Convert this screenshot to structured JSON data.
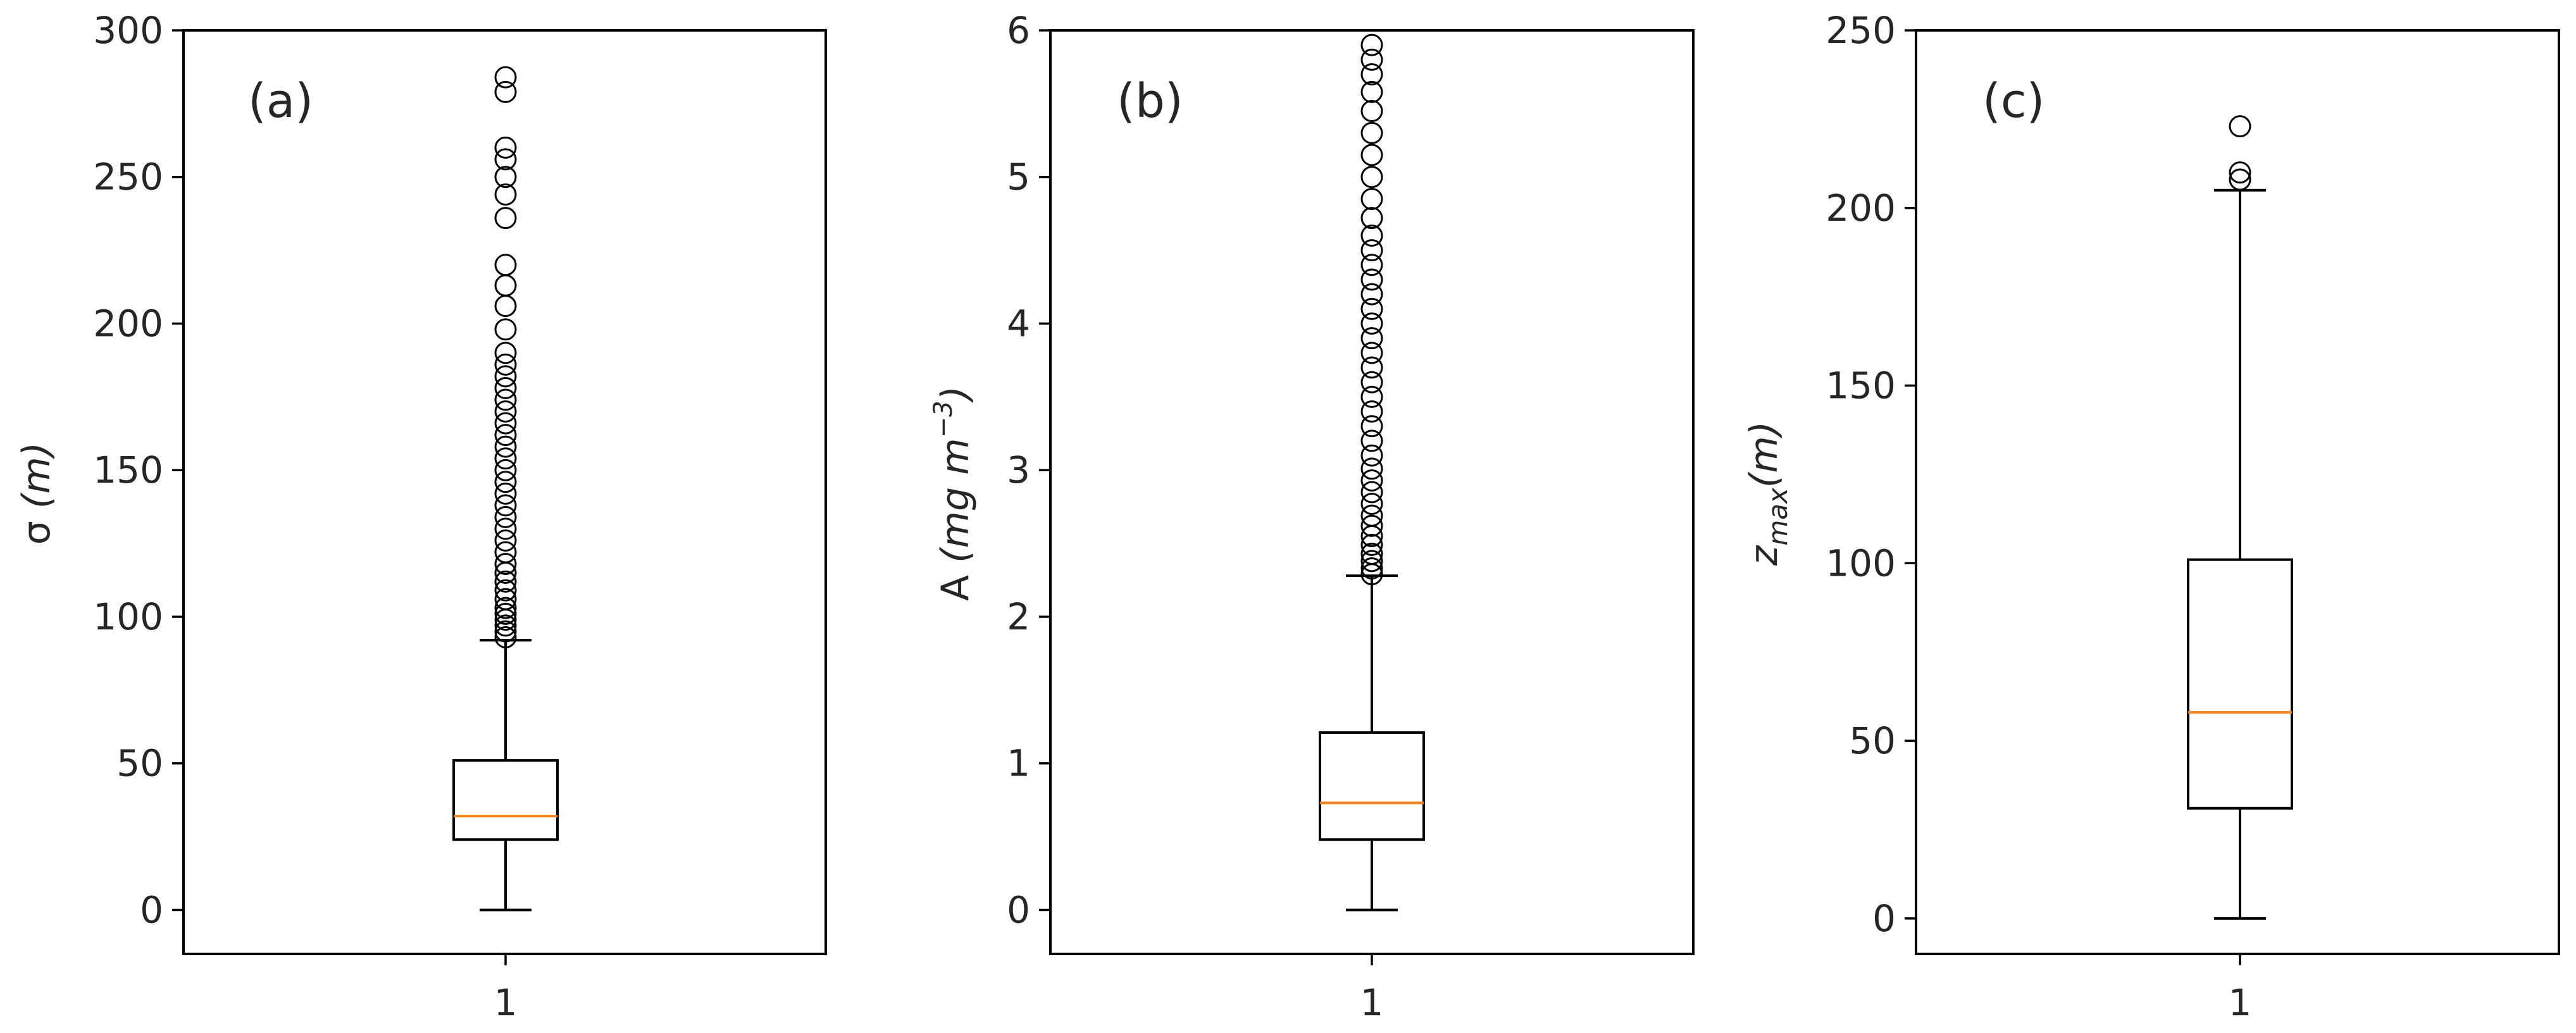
{
  "chart_data": [
    {
      "type": "box",
      "panel_label": "(a)",
      "ylabel": "σ (m)",
      "ylabel_parts": {
        "main": "σ ",
        "unit": "(m)"
      },
      "xticks": [
        "1"
      ],
      "ylim": [
        -15,
        300
      ],
      "yticks": [
        0,
        50,
        100,
        150,
        200,
        250,
        300
      ],
      "ytick_labels": [
        "0",
        "50",
        "100",
        "150",
        "200",
        "250",
        "300"
      ],
      "box": {
        "whisker_low": 0,
        "q1": 24,
        "median": 32,
        "q3": 51,
        "whisker_high": 92
      },
      "outliers": [
        93,
        95,
        97,
        99,
        101,
        103,
        106,
        109,
        112,
        115,
        118,
        122,
        126,
        130,
        134,
        138,
        142,
        146,
        150,
        154,
        158,
        162,
        166,
        170,
        174,
        178,
        182,
        186,
        190,
        198,
        206,
        213,
        220,
        236,
        244,
        250,
        256,
        260,
        279,
        284
      ]
    },
    {
      "type": "box",
      "panel_label": "(b)",
      "ylabel": "A (mg m−3)",
      "ylabel_parts": {
        "main": "A ",
        "unit_open": "(",
        "unit_text": "mg m",
        "unit_sup": "−3",
        "unit_close": ")"
      },
      "xticks": [
        "1"
      ],
      "ylim": [
        -0.3,
        6.0
      ],
      "yticks": [
        0,
        1,
        2,
        3,
        4,
        5,
        6
      ],
      "ytick_labels": [
        "0",
        "1",
        "2",
        "3",
        "4",
        "5",
        "6"
      ],
      "box": {
        "whisker_low": 0,
        "q1": 0.48,
        "median": 0.73,
        "q3": 1.21,
        "whisker_high": 2.28
      },
      "outliers": [
        2.29,
        2.33,
        2.38,
        2.43,
        2.49,
        2.55,
        2.62,
        2.69,
        2.77,
        2.85,
        2.93,
        3.01,
        3.1,
        3.2,
        3.3,
        3.4,
        3.5,
        3.6,
        3.7,
        3.8,
        3.9,
        4.0,
        4.1,
        4.2,
        4.3,
        4.4,
        4.5,
        4.6,
        4.72,
        4.85,
        5.0,
        5.15,
        5.3,
        5.45,
        5.58,
        5.7,
        5.8,
        5.9
      ]
    },
    {
      "type": "box",
      "panel_label": "(c)",
      "ylabel": "zmax(m)",
      "ylabel_parts": {
        "main": "z",
        "sub": "max",
        "unit": "(m)"
      },
      "xticks": [
        "1"
      ],
      "ylim": [
        -10,
        250
      ],
      "yticks": [
        0,
        50,
        100,
        150,
        200,
        250
      ],
      "ytick_labels": [
        "0",
        "50",
        "100",
        "150",
        "200",
        "250"
      ],
      "box": {
        "whisker_low": 0,
        "q1": 31,
        "median": 58,
        "q3": 101,
        "whisker_high": 205
      },
      "outliers": [
        208,
        210,
        223
      ]
    }
  ],
  "colors": {
    "median": "#ff7f0e",
    "line": "#000000",
    "text": "#262626"
  }
}
